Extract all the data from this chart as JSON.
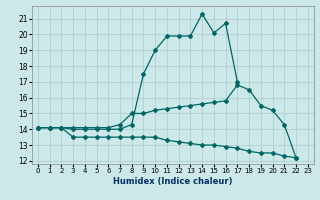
{
  "xlabel": "Humidex (Indice chaleur)",
  "background_color": "#cce8e8",
  "grid_color": "#aacccc",
  "line_color": "#006666",
  "xlim": [
    -0.5,
    23.5
  ],
  "ylim": [
    11.8,
    21.8
  ],
  "xticks": [
    0,
    1,
    2,
    3,
    4,
    5,
    6,
    7,
    8,
    9,
    10,
    11,
    12,
    13,
    14,
    15,
    16,
    17,
    18,
    19,
    20,
    21,
    22,
    23
  ],
  "yticks": [
    12,
    13,
    14,
    15,
    16,
    17,
    18,
    19,
    20,
    21
  ],
  "line1_x": [
    0,
    1,
    2,
    3,
    4,
    5,
    6,
    7,
    8,
    9,
    10,
    11,
    12,
    13,
    14,
    15,
    16,
    17
  ],
  "line1_y": [
    14.1,
    14.1,
    14.1,
    14.0,
    14.0,
    14.0,
    14.0,
    14.0,
    14.3,
    17.5,
    19.0,
    19.9,
    19.9,
    19.9,
    21.3,
    20.1,
    20.7,
    17.0
  ],
  "line2_x": [
    0,
    1,
    2,
    3,
    4,
    5,
    6,
    7,
    8,
    9,
    10,
    11,
    12,
    13,
    14,
    15,
    16,
    17,
    18,
    19,
    20,
    21,
    22
  ],
  "line2_y": [
    14.1,
    14.1,
    14.1,
    14.1,
    14.1,
    14.1,
    14.1,
    14.3,
    15.0,
    15.0,
    15.2,
    15.3,
    15.4,
    15.5,
    15.6,
    15.7,
    15.8,
    16.8,
    16.5,
    15.5,
    15.2,
    14.3,
    12.2
  ],
  "line3_x": [
    0,
    1,
    2,
    3,
    4,
    5,
    6,
    7,
    8,
    9,
    10,
    11,
    12,
    13,
    14,
    15,
    16,
    17,
    18,
    19,
    20,
    21,
    22
  ],
  "line3_y": [
    14.1,
    14.1,
    14.1,
    13.5,
    13.5,
    13.5,
    13.5,
    13.5,
    13.5,
    13.5,
    13.5,
    13.3,
    13.2,
    13.1,
    13.0,
    13.0,
    12.9,
    12.8,
    12.6,
    12.5,
    12.5,
    12.3,
    12.2
  ]
}
